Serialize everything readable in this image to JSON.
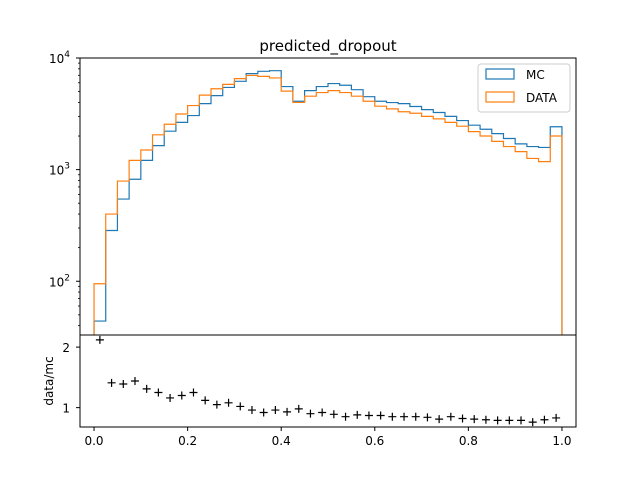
{
  "chart_data": [
    {
      "type": "histogram",
      "title": "predicted_dropout",
      "yscale": "log",
      "ylim": [
        33,
        10000
      ],
      "xlim": [
        -0.03,
        1.03
      ],
      "y_ticks": [
        {
          "value": 100,
          "base": "10",
          "exp": "2"
        },
        {
          "value": 1000,
          "base": "10",
          "exp": "3"
        },
        {
          "value": 10000,
          "base": "10",
          "exp": "4"
        }
      ],
      "legend_position": "top-right",
      "bin_edges": [
        0.0,
        0.025,
        0.05,
        0.075,
        0.1,
        0.125,
        0.15,
        0.175,
        0.2,
        0.225,
        0.25,
        0.275,
        0.3,
        0.325,
        0.35,
        0.375,
        0.4,
        0.425,
        0.45,
        0.475,
        0.5,
        0.525,
        0.55,
        0.575,
        0.6,
        0.625,
        0.65,
        0.675,
        0.7,
        0.725,
        0.75,
        0.775,
        0.8,
        0.825,
        0.85,
        0.875,
        0.9,
        0.925,
        0.95,
        0.975,
        1.0
      ],
      "series": [
        {
          "name": "MC",
          "color": "#1f77b4",
          "values": [
            44,
            285,
            545,
            820,
            1210,
            1640,
            2210,
            2650,
            3050,
            3900,
            4600,
            5450,
            6180,
            7250,
            7600,
            7700,
            5550,
            4100,
            5100,
            5550,
            5900,
            5700,
            5200,
            4500,
            4100,
            3990,
            3900,
            3680,
            3450,
            3250,
            3000,
            2750,
            2500,
            2300,
            2100,
            1900,
            1700,
            1610,
            1580,
            2420
          ]
        },
        {
          "name": "DATA",
          "color": "#ff7f0e",
          "values": [
            95,
            400,
            790,
            1210,
            1500,
            2050,
            2550,
            3150,
            3750,
            4650,
            5300,
            5800,
            6530,
            6980,
            6850,
            6630,
            5050,
            4000,
            4550,
            4900,
            5100,
            4900,
            4550,
            4100,
            3700,
            3500,
            3300,
            3200,
            3000,
            2850,
            2650,
            2450,
            2190,
            2000,
            1790,
            1610,
            1450,
            1260,
            1180,
            2000
          ]
        }
      ]
    },
    {
      "type": "scatter",
      "ylabel": "data/mc",
      "marker": "+",
      "ylim": [
        0.68,
        2.2
      ],
      "y_ticks": [
        "1",
        "2"
      ],
      "xlim": [
        -0.03,
        1.03
      ],
      "x_ticks": [
        "0.0",
        "0.2",
        "0.4",
        "0.6",
        "0.8",
        "1.0"
      ],
      "x": [
        0.0125,
        0.0375,
        0.0625,
        0.0875,
        0.1125,
        0.1375,
        0.1625,
        0.1875,
        0.2125,
        0.2375,
        0.2625,
        0.2875,
        0.3125,
        0.3375,
        0.3625,
        0.3875,
        0.4125,
        0.4375,
        0.4625,
        0.4875,
        0.5125,
        0.5375,
        0.5625,
        0.5875,
        0.6125,
        0.6375,
        0.6625,
        0.6875,
        0.7125,
        0.7375,
        0.7625,
        0.7875,
        0.8125,
        0.8375,
        0.8625,
        0.8875,
        0.9125,
        0.9375,
        0.9625,
        0.9875
      ],
      "y": [
        2.12,
        1.41,
        1.39,
        1.44,
        1.31,
        1.25,
        1.16,
        1.2,
        1.25,
        1.12,
        1.05,
        1.08,
        1.02,
        0.96,
        0.92,
        0.96,
        0.93,
        0.98,
        0.9,
        0.92,
        0.89,
        0.85,
        0.88,
        0.87,
        0.87,
        0.85,
        0.85,
        0.85,
        0.84,
        0.81,
        0.85,
        0.82,
        0.81,
        0.8,
        0.79,
        0.79,
        0.79,
        0.76,
        0.8,
        0.83
      ]
    }
  ]
}
